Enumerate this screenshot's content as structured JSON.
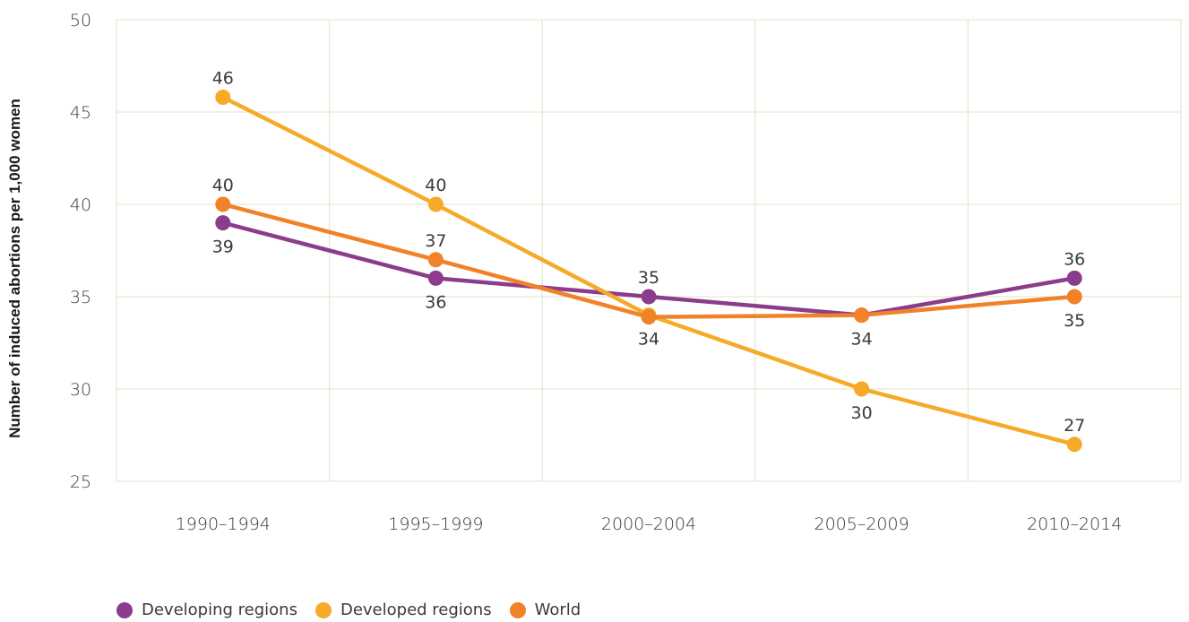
{
  "chart_data": {
    "type": "line",
    "ylabel": "Number of induced abortions per 1,000 women",
    "xlabel": "",
    "title": "",
    "categories": [
      "1990–1994",
      "1995–1999",
      "2000–2004",
      "2005–2009",
      "2010–2014"
    ],
    "ylim": [
      25,
      50
    ],
    "yticks": [
      25,
      30,
      35,
      40,
      45,
      50
    ],
    "grid": true,
    "legend_position": "bottom-left",
    "series": [
      {
        "name": "Developing regions",
        "color": "#8c3c8c",
        "values": [
          39,
          36,
          35,
          34,
          36
        ],
        "labels": [
          "39",
          "36",
          "35",
          "34",
          "36"
        ],
        "label_positions": [
          "below",
          "below",
          "above",
          "none",
          "above"
        ]
      },
      {
        "name": "Developed regions",
        "color": "#f5aa28",
        "values": [
          45.8,
          40,
          34,
          30,
          27
        ],
        "labels": [
          "46",
          "40",
          "34",
          "30",
          "27"
        ],
        "label_positions": [
          "above",
          "above",
          "below",
          "below",
          "above"
        ]
      },
      {
        "name": "World",
        "color": "#f08228",
        "values": [
          40,
          37,
          33.9,
          34,
          35
        ],
        "labels": [
          "40",
          "37",
          "",
          "34",
          "35"
        ],
        "label_positions": [
          "above",
          "above",
          "none",
          "below",
          "below"
        ]
      }
    ]
  }
}
